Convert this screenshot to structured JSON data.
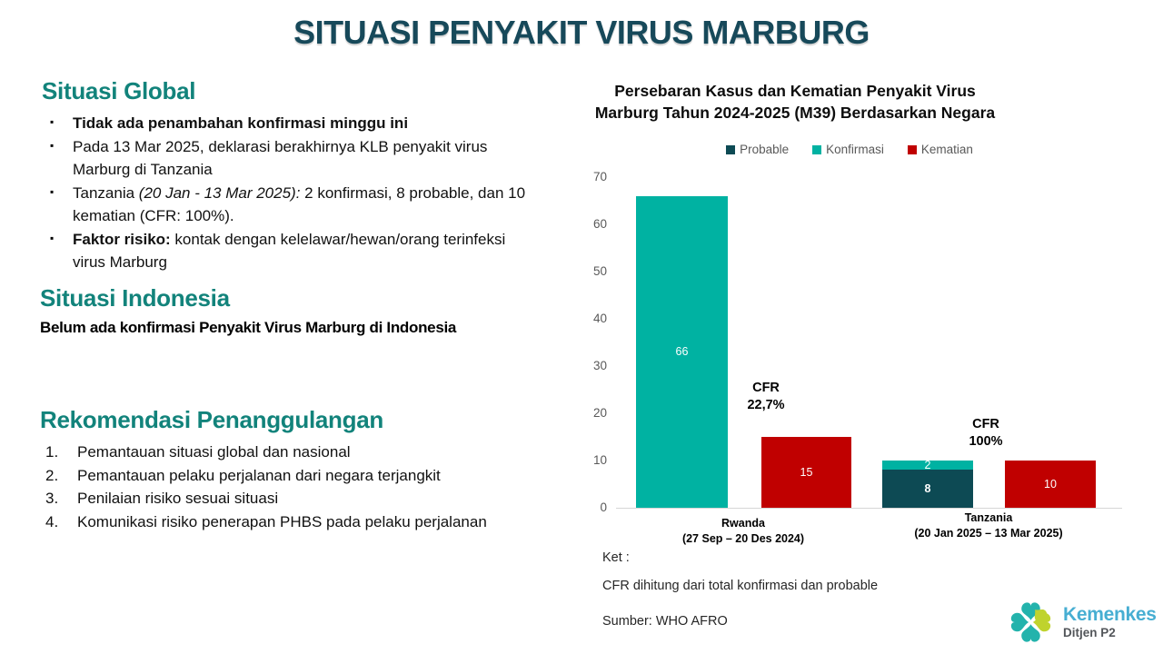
{
  "page": {
    "title": "SITUASI PENYAKIT VIRUS MARBURG"
  },
  "theme": {
    "title_color": "#17495a",
    "heading_color": "#12837b",
    "brand_teal": "#23b3ac",
    "brand_lime": "#bfd32d",
    "wordmark_blue": "#47aed2"
  },
  "global_section": {
    "heading": "Situasi Global",
    "bullets": [
      {
        "segments": [
          {
            "text": "Tidak ada penambahan konfirmasi minggu ini"
          }
        ]
      },
      {
        "segments": [
          {
            "text": "Pada 13 Mar 2025, deklarasi berakhirnya KLB penyakit virus Marburg di Tanzania"
          }
        ]
      },
      {
        "segments": [
          {
            "text": "Tanzania "
          },
          {
            "text": "(20 Jan - 13 Mar 2025):"
          },
          {
            "text": " 2 konfirmasi, 8 probable, dan 10 kematian (CFR: 100%)."
          }
        ]
      },
      {
        "segments": [
          {
            "text": "Faktor risiko:"
          },
          {
            "text": " kontak dengan kelelawar/hewan/orang terinfeksi virus Marburg"
          }
        ]
      }
    ]
  },
  "indonesia_section": {
    "heading": "Situasi Indonesia",
    "statement": "Belum ada konfirmasi Penyakit Virus Marburg di Indonesia"
  },
  "rekomendasi_section": {
    "heading": "Rekomendasi Penanggulangan",
    "items": [
      {
        "text": "Pemantauan situasi global dan nasional"
      },
      {
        "text": "Pemantauan pelaku perjalanan dari negara terjangkit"
      },
      {
        "text": "Penilaian risiko sesuai situasi"
      },
      {
        "text": "Komunikasi risiko penerapan PHBS pada pelaku perjalanan"
      }
    ]
  },
  "chart_data": {
    "type": "bar",
    "title": "Persebaran Kasus dan Kematian Penyakit Virus Marburg Tahun 2024-2025 (M39) Berdasarkan Negara",
    "legend": [
      {
        "name": "Probable",
        "color": "#0d4a54"
      },
      {
        "name": "Konfirmasi",
        "color": "#00b2a2"
      },
      {
        "name": "Kematian",
        "color": "#c00000"
      }
    ],
    "ylim": [
      0,
      70
    ],
    "yticks": [
      0,
      10,
      20,
      30,
      40,
      50,
      60,
      70
    ],
    "grid": false,
    "legend_position": "top",
    "categories": [
      {
        "label": "Rwanda",
        "period": "(27 Sep – 20 Des 2024)",
        "cfr_title": "CFR",
        "cfr_value": "22,7%",
        "bars": [
          {
            "segments": [
              {
                "series": "Konfirmasi",
                "value": 66
              }
            ]
          },
          {
            "segments": [
              {
                "series": "Kematian",
                "value": 15
              }
            ]
          }
        ]
      },
      {
        "label": "Tanzania",
        "period": "(20 Jan 2025 – 13 Mar 2025)",
        "cfr_title": "CFR",
        "cfr_value": "100%",
        "bars": [
          {
            "segments": [
              {
                "series": "Probable",
                "value": 8
              },
              {
                "series": "Konfirmasi",
                "value": 2
              }
            ]
          },
          {
            "segments": [
              {
                "series": "Kematian",
                "value": 10
              }
            ]
          }
        ]
      }
    ],
    "notes": {
      "ket_label": "Ket :",
      "ket_text": "CFR dihitung dari total konfirmasi dan probable",
      "source": "Sumber: WHO AFRO"
    }
  },
  "logo": {
    "name": "Kemenkes",
    "subtitle": "Ditjen P2"
  }
}
